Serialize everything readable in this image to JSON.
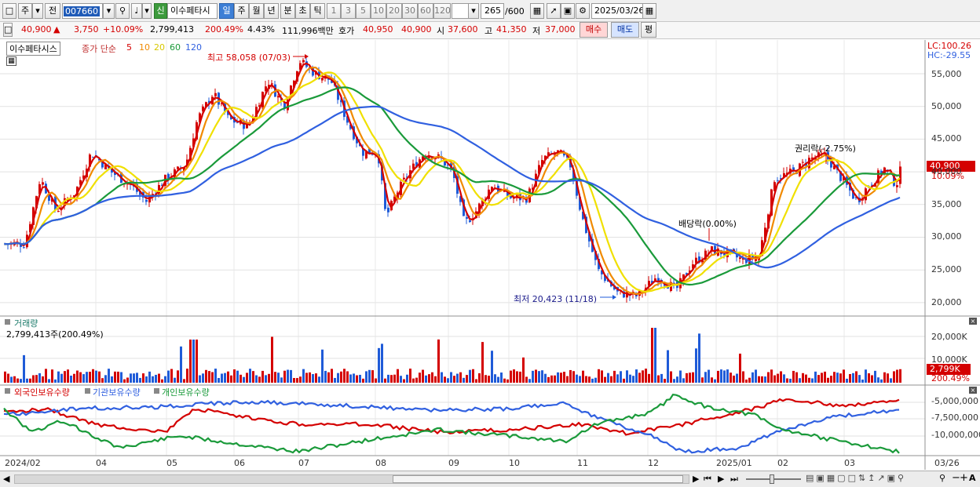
{
  "toolbar": {
    "period_label": "주",
    "all_label": "전",
    "code": "007660",
    "sin_label": "신",
    "stock_name": "이수페타시",
    "tabs": [
      "일",
      "주",
      "월",
      "년",
      "분",
      "초",
      "틱"
    ],
    "active_tab": "일",
    "numbers": [
      "1",
      "3",
      "5",
      "10",
      "20",
      "30",
      "60",
      "120"
    ],
    "count": "265",
    "count_total": "/600",
    "date": "2025/03/26"
  },
  "quote": {
    "price": "40,900",
    "arrow": "▲",
    "change": "3,750",
    "change_pct": "+10.09%",
    "volume": "2,799,413",
    "volume_pct": "200.49%",
    "turnover_pct": "4.43%",
    "amount": "111,996백만",
    "ask_label": "호가",
    "ask1": "40,950",
    "ask2": "40,900",
    "open_label": "시",
    "open": "37,600",
    "high_label": "고",
    "high": "41,350",
    "low_label": "저",
    "low": "37,000",
    "buy_label": "매수",
    "sell_label": "매도",
    "eval_label": "평"
  },
  "price_panel": {
    "name_box": "이수페타시스",
    "ma_label": "종가 단순",
    "ma_periods": [
      {
        "label": "5",
        "color": "#d40000"
      },
      {
        "label": "10",
        "color": "#f08a00"
      },
      {
        "label": "20",
        "color": "#f0e000"
      },
      {
        "label": "60",
        "color": "#1a9a3a"
      },
      {
        "label": "120",
        "color": "#3060e0"
      }
    ],
    "lc": "LC:100.26",
    "hc": "HC:-29.55",
    "high_note": "최고 58,058 (07/03)",
    "low_note": "최저 20,423 (11/18)",
    "dividend_note": "배당락(0.00%)",
    "rights_note": "권리락(-2.75%)",
    "current_price_box": "40,900",
    "current_pct_box": "10.09%",
    "y_ticks": [
      "55,000",
      "50,000",
      "45,000",
      "40,000",
      "35,000",
      "30,000",
      "25,000",
      "20,000"
    ]
  },
  "volume_panel": {
    "title": "거래량",
    "value": "2,799,413주(200.49%)",
    "y_ticks": [
      "20,000K",
      "10,000K"
    ],
    "current_box": "2,799K",
    "current_pct": "200.49%"
  },
  "holder_panel": {
    "series": [
      {
        "name": "외국인보유수량",
        "color": "#d40000"
      },
      {
        "name": "기관보유수량",
        "color": "#3060e0"
      },
      {
        "name": "개인보유수량",
        "color": "#1a9a3a"
      }
    ],
    "y_ticks": [
      "-5,000,000",
      "-7,500,000",
      "-10,000,000"
    ]
  },
  "x_axis": {
    "labels": [
      "2024/02",
      "04",
      "05",
      "06",
      "07",
      "08",
      "09",
      "10",
      "11",
      "12",
      "2025/01",
      "02",
      "03",
      "03/26"
    ]
  },
  "colors": {
    "up": "#d40000",
    "down": "#1f5bd8"
  }
}
